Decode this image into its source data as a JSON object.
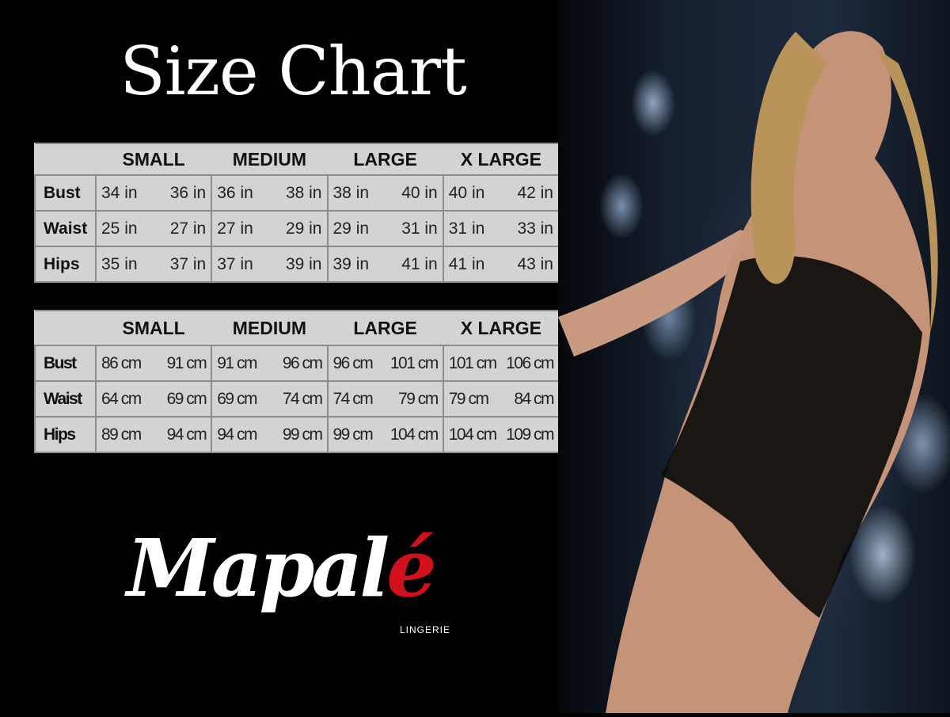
{
  "title": "Size Chart",
  "sizes": [
    "SMALL",
    "MEDIUM",
    "LARGE",
    "X LARGE"
  ],
  "inches_table": {
    "rows": [
      {
        "label": "Bust",
        "values": [
          "34 in",
          "36 in",
          "36 in",
          "38 in",
          "38 in",
          "40 in",
          "40 in",
          "42 in"
        ]
      },
      {
        "label": "Waist",
        "values": [
          "25 in",
          "27 in",
          "27 in",
          "29 in",
          "29 in",
          "31 in",
          "31 in",
          "33 in"
        ]
      },
      {
        "label": "Hips",
        "values": [
          "35 in",
          "37 in",
          "37 in",
          "39 in",
          "39 in",
          "41 in",
          "41 in",
          "43 in"
        ]
      }
    ]
  },
  "cm_table": {
    "rows": [
      {
        "label": "Bust",
        "values": [
          "86 cm",
          "91 cm",
          "91 cm",
          "96 cm",
          "96 cm",
          "101 cm",
          "101 cm",
          "106 cm"
        ]
      },
      {
        "label": "Waist",
        "values": [
          "64 cm",
          "69 cm",
          "69 cm",
          "74 cm",
          "74 cm",
          "79  cm",
          "79 cm",
          "84 cm"
        ]
      },
      {
        "label": "Hips",
        "values": [
          "89 cm",
          "94 cm",
          "94 cm",
          "99 cm",
          "99 cm",
          "104 cm",
          "104 cm",
          "109 cm"
        ]
      }
    ]
  },
  "logo": {
    "main": "Mapal",
    "accent": "é",
    "sub": "LINGERIE",
    "accent_color": "#d0101a"
  },
  "colors": {
    "background": "#000000",
    "table_bg": "#d3d3d3",
    "table_border": "#8c8c8c"
  }
}
